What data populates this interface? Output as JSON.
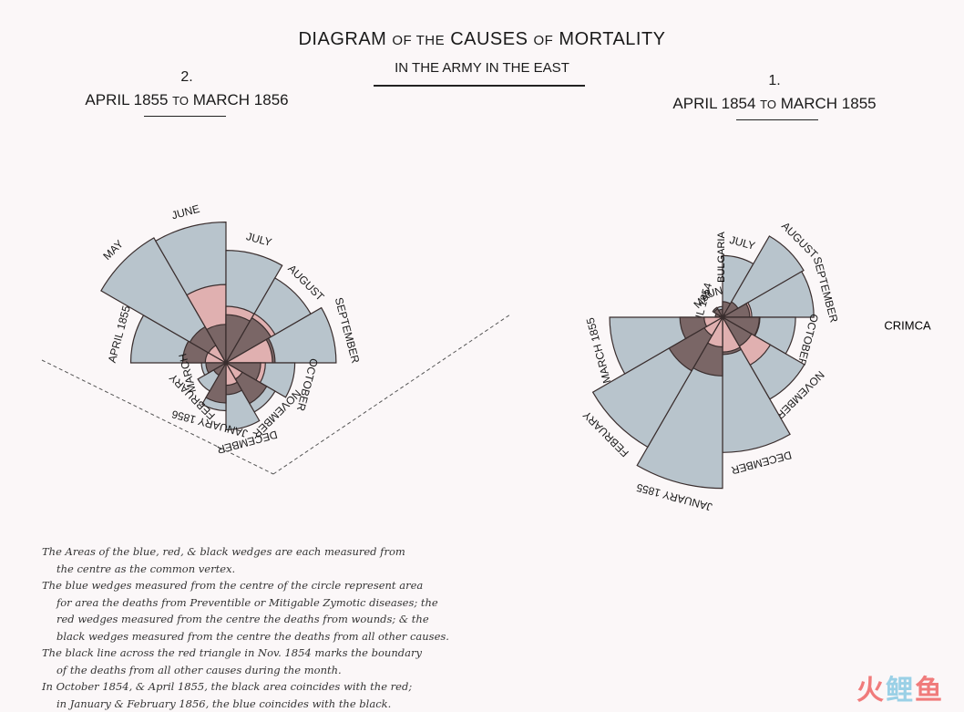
{
  "header": {
    "title_main_1": "DIAGRAM",
    "title_or_1": "OF THE",
    "title_main_2": "CAUSES",
    "title_or_2": "OF",
    "title_main_3": "MORTALITY",
    "subtitle": "IN THE ARMY IN THE EAST"
  },
  "panel_left": {
    "number": "2.",
    "range_start": "APRIL 1855",
    "range_to": "TO",
    "range_end": "MARCH 1856"
  },
  "panel_right": {
    "number": "1.",
    "range_start": "APRIL 1854",
    "range_to": "TO",
    "range_end": "MARCH 1855"
  },
  "notes": [
    "The Areas of the blue, red, & black wedges are each measured from",
    "the centre as the common vertex.",
    "The blue wedges measured from the centre of the circle represent area",
    "for area the deaths from Preventible or Mitigable Zymotic diseases; the",
    "red wedges measured from the centre the deaths from wounds; & the",
    "black wedges measured from the centre the deaths from all other causes.",
    "The black line across the red triangle in Nov. 1854 marks the boundary",
    "of the deaths from all other causes during the month.",
    "In October 1854, & April 1855, the black area coincides with the red;",
    "in January & February 1856, the blue coincides with the black."
  ],
  "colors": {
    "blue": "#b8c4cc",
    "red": "#e0b0b0",
    "black": "#7a6666",
    "stroke": "#3a2e2e"
  },
  "watermark": {
    "part1": "火",
    "part2": "鲤",
    "part3": "鱼"
  },
  "chart_data": [
    {
      "type": "polar-area",
      "label": "1. APRIL 1854 TO MARCH 1855",
      "months": [
        "APRIL 1854",
        "MAY",
        "JUNE",
        "JULY",
        "AUGUST",
        "SEPTEMBER",
        "OCTOBER",
        "NOVEMBER",
        "DECEMBER",
        "JANUARY 1855",
        "FEBRUARY",
        "MARCH 1855"
      ],
      "annotations": [
        {
          "text": "BULGARIA"
        },
        {
          "text": "CRIMCA"
        }
      ],
      "series": [
        {
          "key": "blue",
          "values": [
            1,
            12,
            11,
            359,
            828,
            788,
            503,
            844,
            1725,
            2761,
            2120,
            1205
          ]
        },
        {
          "key": "red",
          "values": [
            0,
            0,
            0,
            0,
            1,
            81,
            132,
            287,
            114,
            83,
            42,
            32
          ]
        },
        {
          "key": "black",
          "values": [
            5,
            9,
            6,
            23,
            30,
            70,
            128,
            106,
            131,
            324,
            361,
            172
          ]
        }
      ]
    },
    {
      "type": "polar-area",
      "label": "2. APRIL 1855 TO MARCH 1856",
      "months": [
        "APRIL 1855",
        "MAY",
        "JUNE",
        "JULY",
        "AUGUST",
        "SEPTEMBER",
        "OCTOBER",
        "NOVEMBER",
        "DECEMBER",
        "JANUARY 1856",
        "FEBRUARY",
        "MARCH"
      ],
      "series": [
        {
          "key": "blue",
          "values": [
            361,
            828,
            788,
            503,
            382,
            483,
            189,
            128,
            178,
            91,
            42,
            24
          ]
        },
        {
          "key": "red",
          "values": [
            17,
            16,
            244,
            127,
            128,
            86,
            62,
            14,
            20,
            0,
            0,
            0
          ]
        },
        {
          "key": "black",
          "values": [
            75,
            69,
            59,
            92,
            107,
            96,
            48,
            88,
            40,
            64,
            8,
            16
          ]
        }
      ]
    }
  ]
}
